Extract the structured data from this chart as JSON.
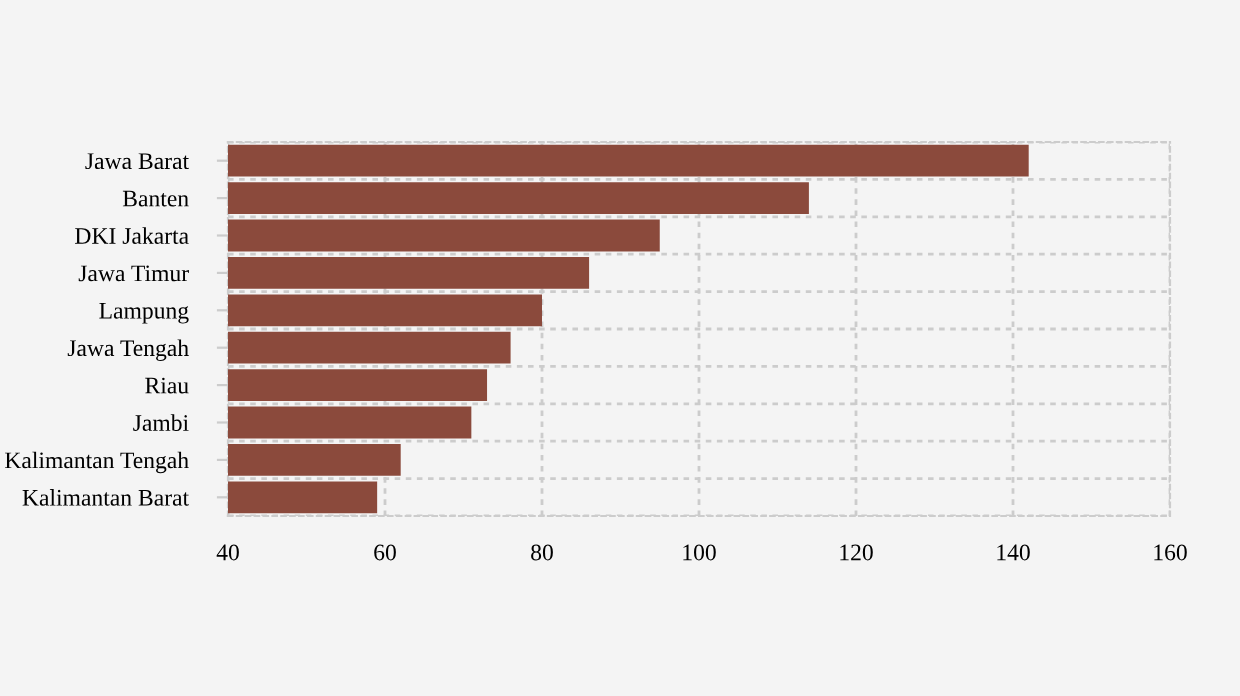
{
  "chart_data": {
    "type": "bar",
    "orientation": "horizontal",
    "categories": [
      "Jawa Barat",
      "Banten",
      "DKI Jakarta",
      "Jawa Timur",
      "Lampung",
      "Jawa Tengah",
      "Riau",
      "Jambi",
      "Kalimantan Tengah",
      "Kalimantan Barat"
    ],
    "values": [
      142,
      114,
      95,
      86,
      80,
      76,
      73,
      71,
      62,
      59
    ],
    "color": "#8b4a3c",
    "xlim": [
      40,
      160
    ],
    "xticks": [
      40,
      60,
      80,
      100,
      120,
      140,
      160
    ],
    "grid": true
  }
}
